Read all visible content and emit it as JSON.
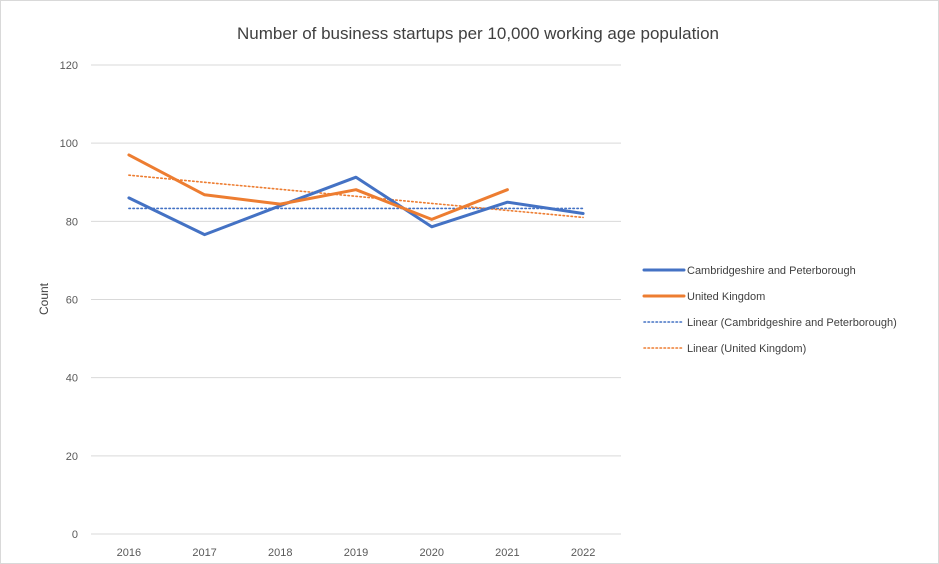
{
  "chart_data": {
    "type": "line",
    "title": "Number of business startups per 10,000 working age population",
    "xlabel": "",
    "ylabel": "Count",
    "categories": [
      "2016",
      "2017",
      "2018",
      "2019",
      "2020",
      "2021",
      "2022"
    ],
    "ylim": [
      0,
      120
    ],
    "yticks": [
      0,
      20,
      40,
      60,
      80,
      100,
      120
    ],
    "grid": true,
    "legend_position": "right",
    "series": [
      {
        "name": "Cambridgeshire and Peterborough",
        "values": [
          86,
          76.6,
          84,
          91.3,
          78.6,
          84.9,
          82
        ],
        "color": "#4472c4",
        "style": "solid"
      },
      {
        "name": "United Kingdom",
        "values": [
          97,
          86.8,
          84.4,
          88.1,
          80.5,
          88.1,
          null
        ],
        "color": "#ed7d31",
        "style": "solid"
      }
    ],
    "trendlines": [
      {
        "name": "Linear (Cambridgeshire and Peterborough)",
        "values": [
          83.3,
          83.3,
          83.3,
          83.3,
          83.3,
          83.3,
          83.3
        ],
        "color": "#4472c4",
        "style": "dotted"
      },
      {
        "name": "Linear (United Kingdom)",
        "values": [
          91.8,
          90.0,
          88.2,
          86.4,
          84.6,
          82.8,
          81.0
        ],
        "color": "#ed7d31",
        "style": "dotted"
      }
    ]
  }
}
